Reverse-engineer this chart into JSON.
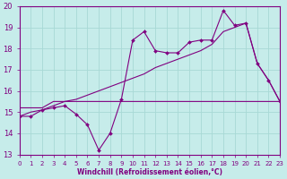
{
  "background_color": "#c6ecea",
  "grid_color": "#a8d8d5",
  "line_color": "#800080",
  "marker_color": "#800080",
  "xlabel": "Windchill (Refroidissement éolien,°C)",
  "xlabel_color": "#800080",
  "tick_color": "#800080",
  "ylim": [
    13,
    20
  ],
  "xlim": [
    0,
    23
  ],
  "yticks": [
    13,
    14,
    15,
    16,
    17,
    18,
    19,
    20
  ],
  "xticks": [
    0,
    1,
    2,
    3,
    4,
    5,
    6,
    7,
    8,
    9,
    10,
    11,
    12,
    13,
    14,
    15,
    16,
    17,
    18,
    19,
    20,
    21,
    22,
    23
  ],
  "series1_x": [
    0,
    1,
    2,
    3,
    4,
    5,
    6,
    7,
    8,
    9,
    10,
    11,
    12,
    13,
    14,
    15,
    16,
    17,
    18,
    19,
    20,
    21,
    22,
    23
  ],
  "series1_y": [
    14.8,
    14.8,
    15.1,
    15.2,
    15.3,
    14.9,
    14.4,
    13.2,
    14.0,
    15.6,
    18.4,
    18.8,
    17.9,
    17.8,
    17.8,
    18.3,
    18.4,
    18.4,
    19.8,
    19.1,
    19.2,
    17.3,
    16.5,
    15.5
  ],
  "series2_x": [
    0,
    2,
    3,
    23
  ],
  "series2_y": [
    15.2,
    15.2,
    15.5,
    15.5
  ],
  "series3_x": [
    0,
    1,
    2,
    3,
    4,
    5,
    6,
    7,
    8,
    9,
    10,
    11,
    12,
    13,
    14,
    15,
    16,
    17,
    18,
    19,
    20,
    21,
    22,
    23
  ],
  "series3_y": [
    14.8,
    15.0,
    15.1,
    15.3,
    15.5,
    15.6,
    15.8,
    16.0,
    16.2,
    16.4,
    16.6,
    16.8,
    17.1,
    17.3,
    17.5,
    17.7,
    17.9,
    18.2,
    18.8,
    19.0,
    19.2,
    17.3,
    16.5,
    15.5
  ]
}
